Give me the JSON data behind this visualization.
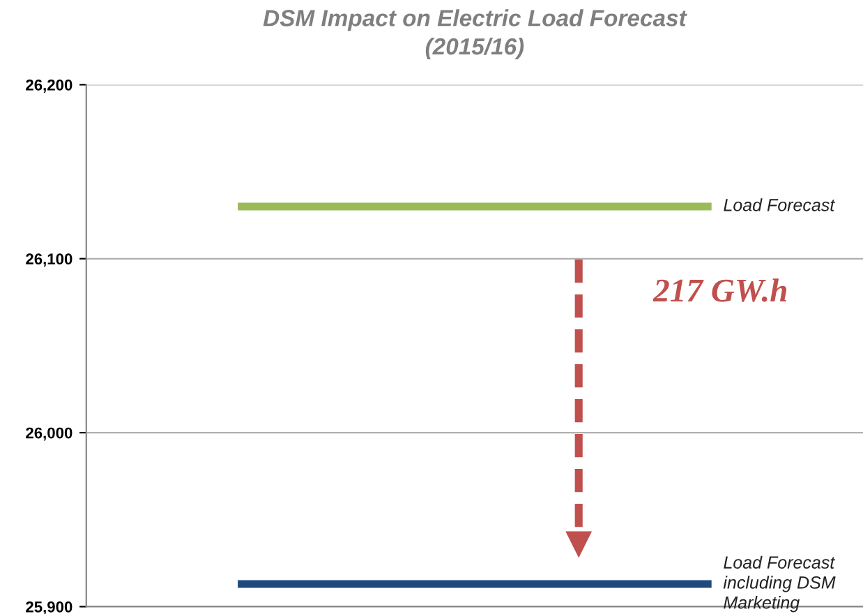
{
  "chart_data": {
    "type": "line",
    "title": "DSM Impact on Electric Load Forecast\n(2015/16)",
    "categories": [
      null,
      null,
      null,
      null,
      null,
      null
    ],
    "series": [
      {
        "name": "Load Forecast",
        "color": "#9bbb59",
        "values": [
          null,
          26130,
          26130,
          26130,
          26130,
          null
        ]
      },
      {
        "name": "Load Forecast\nincluding DSM\nMarketing",
        "color": "#1f497d",
        "values": [
          null,
          25913,
          25913,
          25913,
          25913,
          null
        ]
      }
    ],
    "ylim": [
      25900,
      26200
    ],
    "yticks": [
      {
        "value": 25900,
        "label": "25,900"
      },
      {
        "value": 26000,
        "label": "26,000"
      },
      {
        "value": 26100,
        "label": "26,100"
      },
      {
        "value": 26200,
        "label": "26,200"
      }
    ],
    "grid": "y",
    "tick_labels": "y",
    "legend": false,
    "marker": "none",
    "line_style": "solid",
    "annotations": [
      "217 GW.h"
    ]
  }
}
